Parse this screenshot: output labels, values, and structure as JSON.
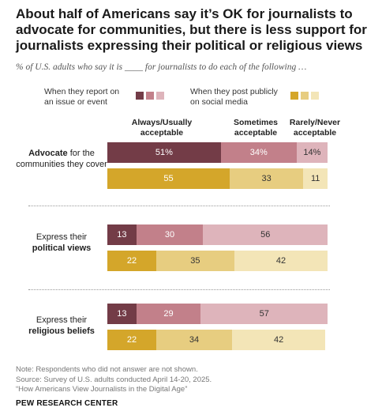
{
  "title": "About half of Americans say it’s OK for journalists to advocate for communities, but there is less support for journalists expressing their political or religious views",
  "subtitle": "% of U.S. adults who say it is ____ for journalists to do each of the following …",
  "legend": {
    "report": {
      "line1": "When they report on",
      "line2": "an issue or event"
    },
    "post": {
      "line1": "When they post publicly",
      "line2": "on social media"
    }
  },
  "colors": {
    "report": [
      "#733c47",
      "#c2808a",
      "#deb4bb"
    ],
    "post": [
      "#d4a62a",
      "#e7cd80",
      "#f3e5b7"
    ]
  },
  "chart_data": {
    "type": "bar",
    "orientation": "horizontal",
    "stacked": true,
    "response_categories": [
      "Always/Usually acceptable",
      "Sometimes acceptable",
      "Rarely/Never acceptable"
    ],
    "series": [
      {
        "name": "When they report on an issue or event"
      },
      {
        "name": "When they post publicly on social media"
      }
    ],
    "groups": [
      {
        "label_bold": "Advocate",
        "label_rest": "for the communities they cover",
        "report": [
          51,
          34,
          14
        ],
        "post": [
          55,
          33,
          11
        ],
        "report_labels": [
          "51%",
          "34%",
          "14%"
        ],
        "post_labels": [
          "55",
          "33",
          "11"
        ]
      },
      {
        "label_plain": "Express their",
        "label_bold": "political views",
        "report": [
          13,
          30,
          56
        ],
        "post": [
          22,
          35,
          42
        ],
        "report_labels": [
          "13",
          "30",
          "56"
        ],
        "post_labels": [
          "22",
          "35",
          "42"
        ]
      },
      {
        "label_plain": "Express their",
        "label_bold": "religious beliefs",
        "report": [
          13,
          29,
          57
        ],
        "post": [
          22,
          34,
          42
        ],
        "report_labels": [
          "13",
          "29",
          "57"
        ],
        "post_labels": [
          "22",
          "34",
          "42"
        ]
      }
    ]
  },
  "notes": {
    "line1": "Note: Respondents who did not answer are not shown.",
    "line2": "Source: Survey of U.S. adults conducted April 14-20, 2025.",
    "line3": "“How Americans View Journalists in the Digital Age”"
  },
  "brand": "PEW RESEARCH CENTER"
}
